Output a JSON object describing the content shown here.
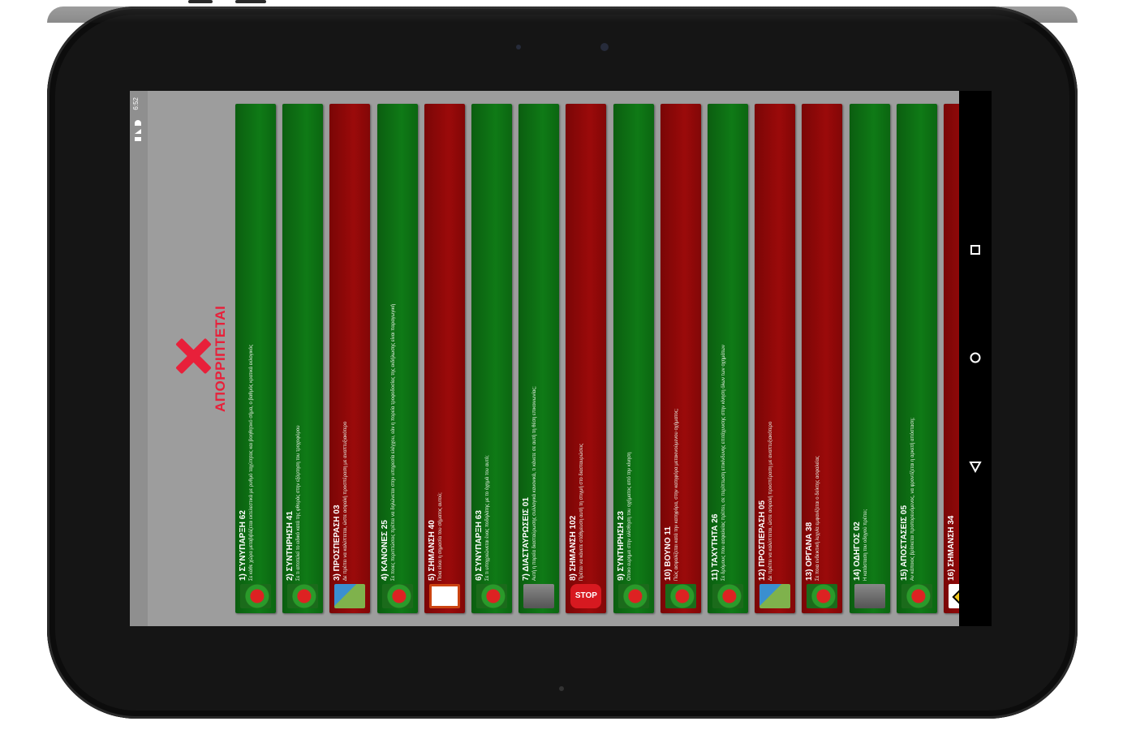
{
  "status_bar": {
    "time": "6:52"
  },
  "reject": {
    "text": "ΑΠΟΡΡΙΠΤΕΤΑΙ"
  },
  "colors": {
    "correct": "#0f7a16",
    "wrong": "#9b0a0a",
    "reject": "#e8203a",
    "background": "#9d9d9d"
  },
  "cards": [
    {
      "title": "1) ΣΥΝΥΠΑΡΞΗ 62",
      "desc": "Σε κάθε χώρα μεταβιβάζεται εκτελεστικά με ρυθμό ταχύτητας και βοηθητικό σήμα, ο βαθμός κρατικά εκλογικός",
      "status": "correct",
      "icon": "cartoon-icon"
    },
    {
      "title": "2) ΣΥΝΤΗΡΗΣΗ 41",
      "desc": "Σε τι αποτελεί το ειδικό κατά της φθοράς στην εξάρτηση του τροχοφόρου",
      "status": "correct",
      "icon": "cartoon-icon"
    },
    {
      "title": "3) ΠΡΟΣΠΕΡΑΣΗ 03",
      "desc": "Δε πρέπει να καλύπτεται, ώστε ασφαλή προσπέραση με αναπτυξιακότερο",
      "status": "wrong",
      "icon": "road-icon"
    },
    {
      "title": "4) ΚΑΝΟΝΕΣ 25",
      "desc": "Σε ποιες περιπτώσεις πρέπει να δηλώνεται στην υπηρεσία ελέγχου, εάν η πορεία τροφοδοσίας της εκδήλωσης είναι παραγωγική",
      "status": "correct",
      "icon": "cartoon-icon"
    },
    {
      "title": "5) ΣΗΜΑΝΣΗ 40",
      "desc": "Ποια είναι η σημασία του σήματος αυτού;",
      "status": "wrong",
      "icon": "sign-icon"
    },
    {
      "title": "6) ΣΥΝΥΠΑΡΞΗ 63",
      "desc": "Σε τι υποχρεώνεται ένας ποδηλάτης με το όχημά του αυτό;",
      "status": "correct",
      "icon": "cartoon-icon"
    },
    {
      "title": "7) ΔΙΑΣΤΑΥΡΩΣΕΙΣ 01",
      "desc": "Αυτή η πορεία διασταύρωσης συλλογικά κανονικά, τι κάνετε σε αυτή τη θέση επικοινωνίας;",
      "status": "correct",
      "icon": "photo-icon"
    },
    {
      "title": "8) ΣΗΜΑΝΣΗ 102",
      "desc": "Πρέπει να κάνετε στάθμευση αυτή τη στιγμή στο διασταυρώσεις",
      "status": "wrong",
      "icon": "stop-icon"
    },
    {
      "title": "9) ΣΥΝΤΗΡΗΣΗ 23",
      "desc": "Οποιο ευρημα στην ολίσθηση του οχήματος από την κίνηση",
      "status": "correct",
      "icon": "cartoon-icon"
    },
    {
      "title": "10) ΒΟΥΝΟ 11",
      "desc": "Πώς ασφαλίζεται κατά την κατηφόρα, στην κατηφόρα μετακινούμενου οχήματος;",
      "status": "wrong",
      "icon": "cartoon-icon"
    },
    {
      "title": "11) ΤΑΧΥΤΗΤΑ 26",
      "desc": "Σε δρόμους που ασφαλείας πρέπει, σε περίπτωση επικίνδυνης επιτάχυνσης στην κίνηση όλων των οχημάτων",
      "status": "correct",
      "icon": "cartoon-icon"
    },
    {
      "title": "12) ΠΡΟΣΠΕΡΑΣΗ 05",
      "desc": "Δε πρέπει να καλύπτεται, ώστε ασφαλή προσπέραση με αναπτυξιακότερο",
      "status": "wrong",
      "icon": "road-icon"
    },
    {
      "title": "13) ΟΡΓΑΝΑ 38",
      "desc": "Σε ποια ενδεικτική λυχνία εμφανίζεται ο δείκτης ασφαλείας",
      "status": "wrong",
      "icon": "cartoon-icon"
    },
    {
      "title": "14) ΟΔΗΓΟΣ 02",
      "desc": "Η κατάσταση του οδηγού πρέπει;",
      "status": "correct",
      "icon": "photo-icon"
    },
    {
      "title": "15) ΑΠΟΣΤΑΣΕΙΣ 05",
      "desc": "Αν κάποιος βρίσκεται προπορευόμενος, να φροντίζεται η αρκετή απόσταση;",
      "status": "correct",
      "icon": "cartoon-icon"
    },
    {
      "title": "16) ΣΗΜΑΝΣΗ 34",
      "desc": "",
      "status": "wrong",
      "icon": "diamond-sign-icon"
    }
  ]
}
